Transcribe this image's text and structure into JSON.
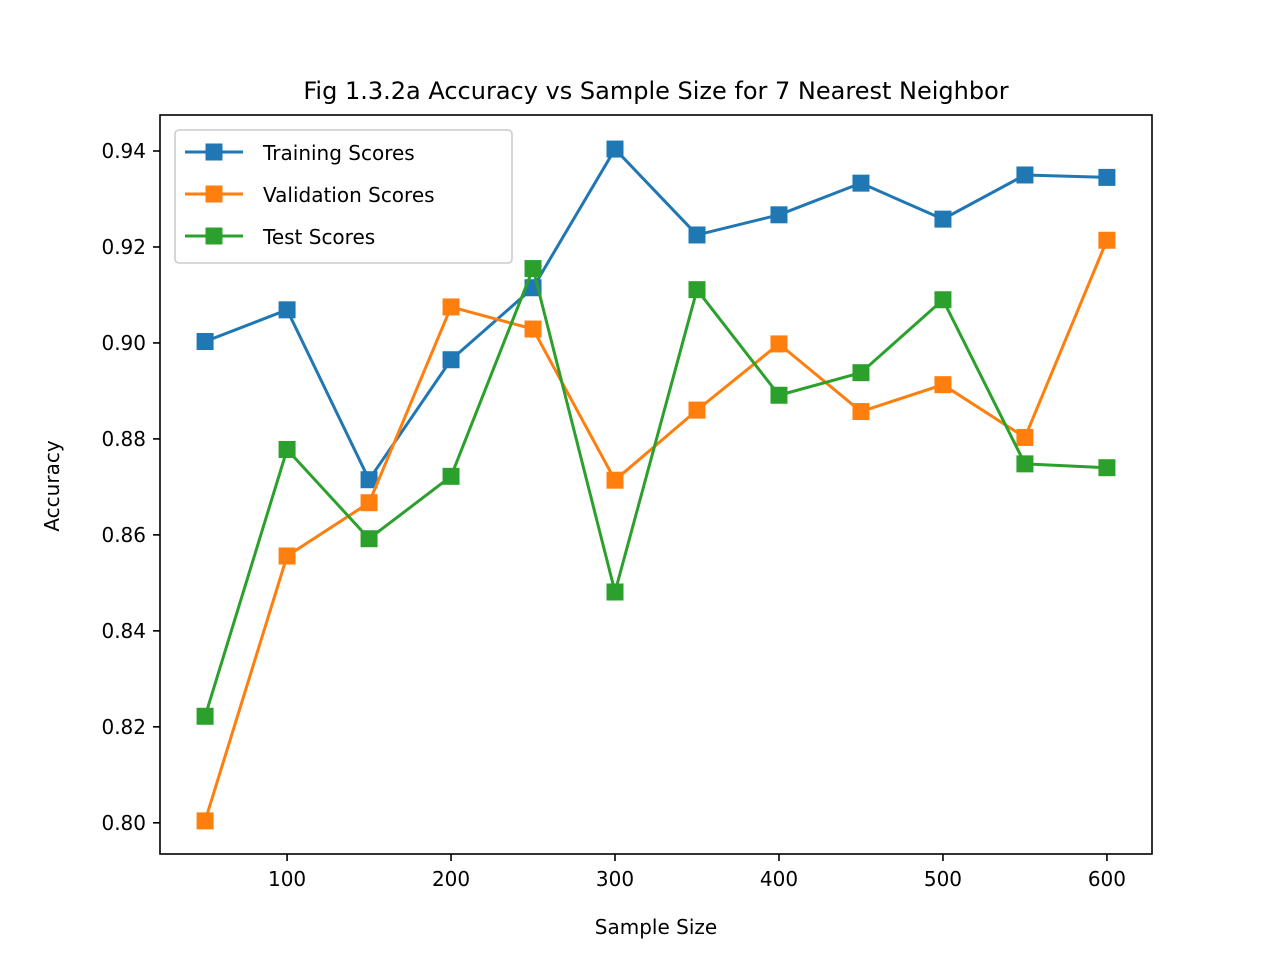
{
  "chart_data": {
    "type": "line",
    "title": "Fig 1.3.2a Accuracy vs Sample Size for 7 Nearest Neighbor",
    "xlabel": "Sample Size",
    "ylabel": "Accuracy",
    "xlim": [
      22.5,
      627.5
    ],
    "ylim": [
      0.7935,
      0.9475
    ],
    "xticks": [
      100,
      200,
      300,
      400,
      500,
      600
    ],
    "xtick_labels": [
      "100",
      "200",
      "300",
      "400",
      "500",
      "600"
    ],
    "yticks": [
      0.8,
      0.82,
      0.84,
      0.86,
      0.88,
      0.9,
      0.92,
      0.94
    ],
    "ytick_labels": [
      "0.80",
      "0.82",
      "0.84",
      "0.86",
      "0.88",
      "0.90",
      "0.92",
      "0.94"
    ],
    "legend_position": "top-left",
    "grid": false,
    "x": [
      50,
      100,
      150,
      200,
      250,
      300,
      350,
      400,
      450,
      500,
      550,
      600
    ],
    "series": [
      {
        "name": "Training Scores",
        "color": "#1f77b4",
        "marker": "square",
        "values": [
          0.9003,
          0.9069,
          0.8715,
          0.8965,
          0.9115,
          0.9404,
          0.9225,
          0.9267,
          0.9333,
          0.9258,
          0.935,
          0.9345
        ]
      },
      {
        "name": "Validation Scores",
        "color": "#ff7f0e",
        "marker": "square",
        "values": [
          0.8004,
          0.8556,
          0.8667,
          0.9075,
          0.9029,
          0.8714,
          0.886,
          0.8998,
          0.8857,
          0.8913,
          0.8803,
          0.9214
        ]
      },
      {
        "name": "Test Scores",
        "color": "#2ca02c",
        "marker": "square",
        "values": [
          0.8222,
          0.8778,
          0.8592,
          0.8722,
          0.9155,
          0.8481,
          0.9111,
          0.8891,
          0.8938,
          0.909,
          0.8748,
          0.874
        ]
      }
    ]
  }
}
